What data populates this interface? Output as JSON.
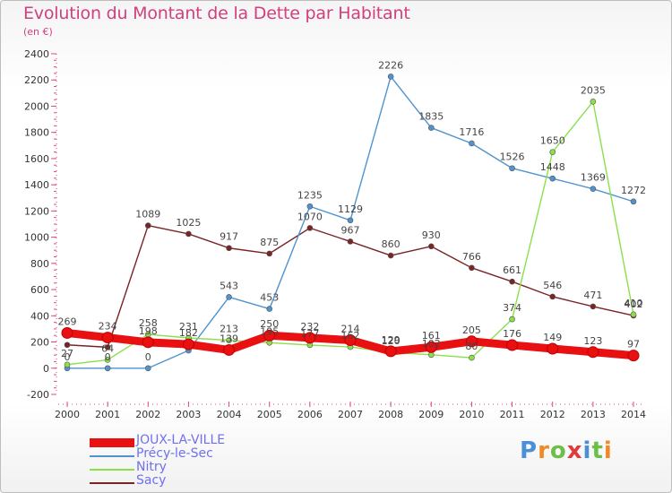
{
  "title": "Evolution du Montant de la Dette par Habitant",
  "unit_label": "(en €)",
  "logo": {
    "text": "Proxiti",
    "letter_colors": [
      "#4a90d9",
      "#f08a24",
      "#6cc04a",
      "#e03a3a",
      "#4a90d9",
      "#6cc04a",
      "#f08a24"
    ]
  },
  "chart_data": {
    "type": "line",
    "x": [
      "2000",
      "2001",
      "2002",
      "2003",
      "2004",
      "2005",
      "2006",
      "2007",
      "2008",
      "2009",
      "2010",
      "2011",
      "2012",
      "2013",
      "2014"
    ],
    "ylim": [
      -200,
      2400
    ],
    "yticks": [
      -200,
      0,
      200,
      400,
      600,
      800,
      1000,
      1200,
      1400,
      1600,
      1800,
      2000,
      2200,
      2400
    ],
    "grid": false,
    "legend_position": "bottom-left",
    "series": [
      {
        "name": "Sacy",
        "color": "#7a2424",
        "values": [
          178,
          160,
          1089,
          1025,
          917,
          875,
          1070,
          967,
          860,
          930,
          766,
          661,
          546,
          471,
          402
        ],
        "labels": [
          "",
          "",
          "1089",
          "1025",
          "917",
          "875",
          "1070",
          "967",
          "860",
          "930",
          "766",
          "661",
          "546",
          "471",
          "402"
        ]
      },
      {
        "name": "Précy-le-Sec",
        "color": "#4f93cf",
        "values": [
          0,
          0,
          0,
          135,
          543,
          453,
          1235,
          1129,
          2226,
          1835,
          1716,
          1526,
          1448,
          1369,
          1272
        ],
        "labels": [
          "0",
          "0",
          "0",
          "",
          "543",
          "453",
          "1235",
          "1129",
          "2226",
          "1835",
          "1716",
          "1526",
          "1448",
          "1369",
          "1272"
        ]
      },
      {
        "name": "Nitry",
        "color": "#8be04a",
        "values": [
          27,
          64,
          258,
          231,
          213,
          195,
          177,
          162,
          120,
          102,
          80,
          374,
          1650,
          2035,
          410
        ],
        "labels": [
          "27",
          "64",
          "258",
          "231",
          "213",
          "195",
          "177",
          "162",
          "120",
          "102",
          "80",
          "374",
          "1650",
          "2035",
          "410"
        ]
      },
      {
        "name": "JOUX-LA-VILLE",
        "color": "#e81010",
        "values": [
          269,
          234,
          198,
          182,
          139,
          250,
          232,
          214,
          129,
          161,
          205,
          176,
          149,
          123,
          97
        ],
        "labels": [
          "269",
          "234",
          "198",
          "182",
          "139",
          "250",
          "232",
          "214",
          "129",
          "161",
          "205",
          "176",
          "149",
          "123",
          "97"
        ]
      }
    ]
  }
}
